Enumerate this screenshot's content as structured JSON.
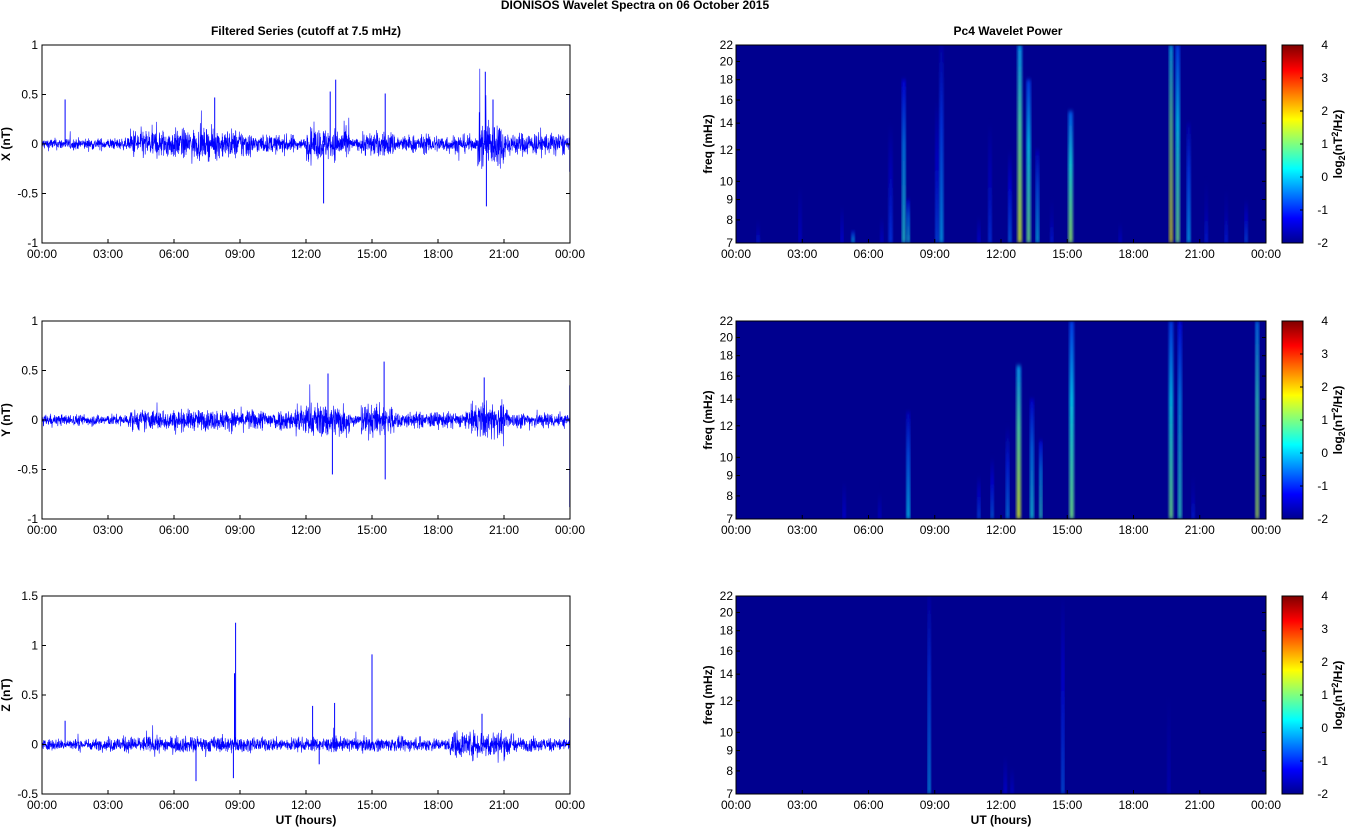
{
  "figure_title": "DIONISOS Wavelet Spectra on 06 October   2015",
  "left_title": "Filtered Series (cutoff at 7.5 mHz)",
  "right_title": "Pc4 Wavelet Power",
  "xlabel": "UT (hours)",
  "time_ticks": [
    "00:00",
    "03:00",
    "06:00",
    "09:00",
    "12:00",
    "15:00",
    "18:00",
    "21:00",
    "00:00"
  ],
  "colors": {
    "trace": "#0000ff",
    "background_power": "#00008f"
  },
  "chart_data": [
    {
      "type": "line",
      "component": "X",
      "ylabel": "X (nT)",
      "xlabel": "",
      "ylim": [
        -1,
        1
      ],
      "yticks": [
        "1",
        "0.5",
        "0",
        "-0.5",
        "-1"
      ],
      "ytick_values": [
        1,
        0.5,
        0,
        -0.5,
        -1
      ],
      "xlim_hours": [
        0,
        24
      ],
      "base_noise": 0.05,
      "bursts": [
        [
          4.0,
          9.5,
          0.13
        ],
        [
          9.5,
          11.5,
          0.08
        ],
        [
          12.0,
          14.0,
          0.14
        ],
        [
          14.5,
          16.0,
          0.11
        ],
        [
          16.0,
          19.5,
          0.08
        ],
        [
          19.8,
          21.0,
          0.22
        ],
        [
          21.0,
          23.8,
          0.1
        ]
      ],
      "spikes": [
        [
          1.05,
          0.45
        ],
        [
          7.85,
          0.47
        ],
        [
          12.8,
          -0.6
        ],
        [
          13.1,
          0.53
        ],
        [
          13.35,
          0.65
        ],
        [
          15.6,
          0.51
        ],
        [
          20.15,
          0.73
        ],
        [
          20.2,
          -0.63
        ],
        [
          20.5,
          0.45
        ],
        [
          24.0,
          0.5
        ],
        [
          24.0,
          -0.28
        ]
      ]
    },
    {
      "type": "line",
      "component": "Y",
      "ylabel": "Y (nT)",
      "xlabel": "",
      "ylim": [
        -1,
        1
      ],
      "yticks": [
        "1",
        "0.5",
        "0",
        "-0.5",
        "-1"
      ],
      "ytick_values": [
        1,
        0.5,
        0,
        -0.5,
        -1
      ],
      "xlim_hours": [
        0,
        24
      ],
      "base_noise": 0.05,
      "bursts": [
        [
          4.0,
          11.5,
          0.09
        ],
        [
          11.5,
          14.0,
          0.15
        ],
        [
          14.5,
          16.0,
          0.14
        ],
        [
          16.0,
          19.5,
          0.07
        ],
        [
          19.5,
          21.0,
          0.16
        ],
        [
          21.0,
          23.8,
          0.07
        ]
      ],
      "spikes": [
        [
          13.2,
          -0.55
        ],
        [
          13.0,
          0.47
        ],
        [
          15.55,
          0.59
        ],
        [
          15.6,
          -0.6
        ],
        [
          20.1,
          0.43
        ],
        [
          24.0,
          0.35
        ],
        [
          24.0,
          -0.88
        ]
      ]
    },
    {
      "type": "line",
      "component": "Z",
      "ylabel": "Z (nT)",
      "xlabel": "UT (hours)",
      "ylim": [
        -0.5,
        1.5
      ],
      "yticks": [
        "1.5",
        "1",
        "0.5",
        "0",
        "-0.5"
      ],
      "ytick_values": [
        1.5,
        1,
        0.5,
        0,
        -0.5
      ],
      "xlim_hours": [
        0,
        24
      ],
      "base_noise": 0.05,
      "bursts": [
        [
          3.0,
          9.0,
          0.07
        ],
        [
          9.0,
          18.0,
          0.06
        ],
        [
          18.5,
          21.5,
          0.12
        ],
        [
          21.5,
          23.8,
          0.06
        ]
      ],
      "spikes": [
        [
          1.05,
          0.24
        ],
        [
          7.0,
          -0.37
        ],
        [
          8.8,
          1.23
        ],
        [
          8.75,
          0.72
        ],
        [
          8.7,
          -0.34
        ],
        [
          12.3,
          0.39
        ],
        [
          12.6,
          -0.2
        ],
        [
          13.3,
          0.42
        ],
        [
          15.0,
          0.91
        ],
        [
          20.0,
          0.31
        ],
        [
          24.0,
          0.27
        ]
      ]
    },
    {
      "type": "heatmap",
      "component": "X",
      "title": "Pc4 Wavelet Power",
      "ylabel": "freq (mHz)",
      "xlabel": "",
      "ylog": true,
      "ylim_mHz": [
        7,
        22
      ],
      "yticks": [
        7,
        8,
        9,
        10,
        12,
        14,
        16,
        18,
        20,
        22
      ],
      "colorbar": {
        "label": "log2(nT2/Hz)",
        "min": -2,
        "max": 4,
        "ticks": [
          4,
          3,
          2,
          1,
          0,
          -1,
          -2
        ]
      },
      "streaks": [
        [
          1.0,
          0.08,
          -1.0,
          8
        ],
        [
          2.9,
          0.06,
          -1.4,
          12
        ],
        [
          4.8,
          0.08,
          -1.2,
          10
        ],
        [
          5.3,
          0.1,
          0.3,
          7.5
        ],
        [
          6.6,
          0.06,
          -1.4,
          9
        ],
        [
          7.0,
          0.12,
          -0.8,
          14
        ],
        [
          7.6,
          0.12,
          0.5,
          18
        ],
        [
          7.8,
          0.1,
          0.4,
          9
        ],
        [
          9.1,
          0.1,
          -0.6,
          16
        ],
        [
          9.3,
          0.12,
          0.0,
          22
        ],
        [
          11.0,
          0.06,
          -1.2,
          9
        ],
        [
          11.5,
          0.1,
          -0.8,
          14
        ],
        [
          12.4,
          0.1,
          -0.4,
          12
        ],
        [
          12.85,
          0.16,
          1.6,
          22
        ],
        [
          13.25,
          0.14,
          1.0,
          18
        ],
        [
          13.65,
          0.1,
          0.2,
          12
        ],
        [
          14.3,
          0.06,
          -1.0,
          9
        ],
        [
          15.15,
          0.16,
          1.2,
          15
        ],
        [
          17.4,
          0.06,
          -1.4,
          8.5
        ],
        [
          19.7,
          0.12,
          1.8,
          22
        ],
        [
          20.0,
          0.14,
          1.0,
          22
        ],
        [
          20.5,
          0.12,
          0.0,
          14
        ],
        [
          21.3,
          0.06,
          -1.0,
          10
        ],
        [
          22.2,
          0.06,
          -1.0,
          9.5
        ],
        [
          23.1,
          0.06,
          -0.6,
          9
        ]
      ]
    },
    {
      "type": "heatmap",
      "component": "Y",
      "title": "",
      "ylabel": "freq (mHz)",
      "xlabel": "",
      "ylog": true,
      "ylim_mHz": [
        7,
        22
      ],
      "yticks": [
        7,
        8,
        9,
        10,
        12,
        14,
        16,
        18,
        20,
        22
      ],
      "colorbar": {
        "label": "log2(nT2/Hz)",
        "min": -2,
        "max": 4,
        "ticks": [
          4,
          3,
          2,
          1,
          0,
          -1,
          -2
        ]
      },
      "streaks": [
        [
          4.9,
          0.06,
          -1.2,
          10
        ],
        [
          6.5,
          0.06,
          -1.4,
          9
        ],
        [
          7.8,
          0.12,
          0.2,
          13
        ],
        [
          11.0,
          0.08,
          -0.6,
          9
        ],
        [
          11.6,
          0.08,
          -0.4,
          10
        ],
        [
          12.3,
          0.1,
          -0.2,
          12
        ],
        [
          12.8,
          0.16,
          1.6,
          17
        ],
        [
          13.4,
          0.12,
          0.4,
          14
        ],
        [
          13.8,
          0.1,
          0.6,
          11
        ],
        [
          15.2,
          0.16,
          1.0,
          22
        ],
        [
          19.7,
          0.14,
          1.0,
          22
        ],
        [
          20.1,
          0.12,
          0.6,
          22
        ],
        [
          20.7,
          0.06,
          -1.0,
          9
        ],
        [
          23.6,
          0.12,
          1.4,
          22
        ]
      ]
    },
    {
      "type": "heatmap",
      "component": "Z",
      "title": "",
      "ylabel": "freq (mHz)",
      "xlabel": "UT (hours)",
      "ylog": true,
      "ylim_mHz": [
        7,
        22
      ],
      "yticks": [
        7,
        8,
        9,
        10,
        12,
        14,
        16,
        18,
        20,
        22
      ],
      "colorbar": {
        "label": "log2(nT2/Hz)",
        "min": -2,
        "max": 4,
        "ticks": [
          4,
          3,
          2,
          1,
          0,
          -1,
          -2
        ]
      },
      "streaks": [
        [
          8.75,
          0.06,
          0.0,
          22
        ],
        [
          14.8,
          0.06,
          -0.5,
          22
        ],
        [
          12.2,
          0.06,
          -1.2,
          10
        ],
        [
          12.5,
          0.05,
          -1.4,
          9
        ],
        [
          19.6,
          0.05,
          -1.6,
          18
        ]
      ]
    }
  ]
}
